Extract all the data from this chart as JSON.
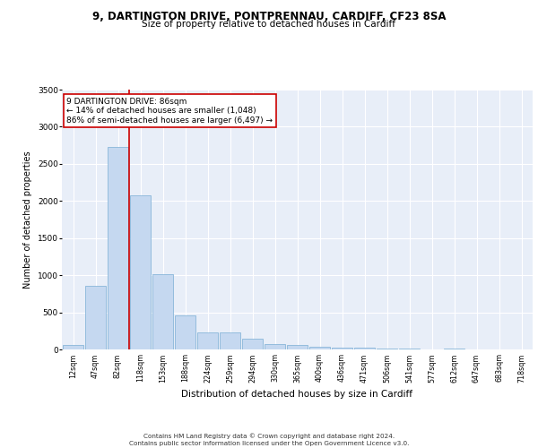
{
  "title_line1": "9, DARTINGTON DRIVE, PONTPRENNAU, CARDIFF, CF23 8SA",
  "title_line2": "Size of property relative to detached houses in Cardiff",
  "xlabel": "Distribution of detached houses by size in Cardiff",
  "ylabel": "Number of detached properties",
  "bar_color": "#c5d8f0",
  "bar_edge_color": "#7aadd4",
  "background_color": "#e8eef8",
  "grid_color": "#ffffff",
  "vline_color": "#cc0000",
  "annotation_text": "9 DARTINGTON DRIVE: 86sqm\n← 14% of detached houses are smaller (1,048)\n86% of semi-detached houses are larger (6,497) →",
  "categories": [
    "12sqm",
    "47sqm",
    "82sqm",
    "118sqm",
    "153sqm",
    "188sqm",
    "224sqm",
    "259sqm",
    "294sqm",
    "330sqm",
    "365sqm",
    "400sqm",
    "436sqm",
    "471sqm",
    "506sqm",
    "541sqm",
    "577sqm",
    "612sqm",
    "647sqm",
    "683sqm",
    "718sqm"
  ],
  "values": [
    55,
    860,
    2730,
    2080,
    1010,
    460,
    230,
    235,
    140,
    75,
    55,
    40,
    25,
    20,
    18,
    10,
    5,
    8,
    5,
    3,
    2
  ],
  "ylim": [
    0,
    3500
  ],
  "yticks": [
    0,
    500,
    1000,
    1500,
    2000,
    2500,
    3000,
    3500
  ],
  "footer_line1": "Contains HM Land Registry data © Crown copyright and database right 2024.",
  "footer_line2": "Contains public sector information licensed under the Open Government Licence v3.0."
}
